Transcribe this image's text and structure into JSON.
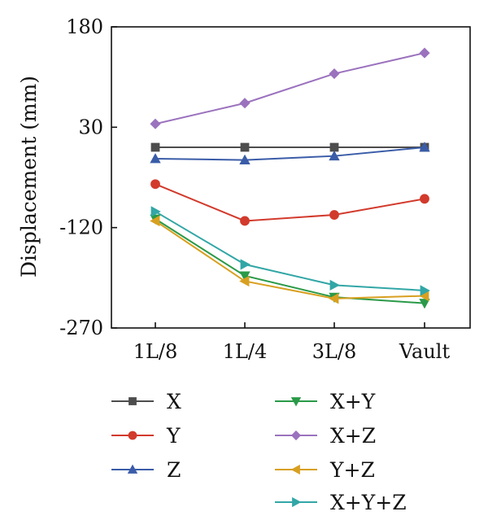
{
  "chart_data": {
    "type": "line",
    "title": "",
    "xlabel": "",
    "ylabel": "Displacement (mm)",
    "categories": [
      "1L/8",
      "1L/4",
      "3L/8",
      "Vault"
    ],
    "ylim": [
      -270,
      180
    ],
    "yticks": [
      180,
      30,
      -120,
      -270
    ],
    "ytick_labels": [
      "180",
      "30",
      "-120",
      "-270"
    ],
    "grid": false,
    "legend_position": "bottom",
    "series": [
      {
        "name": "X",
        "color": "#4d4d4d",
        "marker": "square",
        "values": [
          0,
          0,
          0,
          0
        ]
      },
      {
        "name": "Y",
        "color": "#d23a2c",
        "marker": "circle",
        "values": [
          -55,
          -110,
          -101,
          -77
        ]
      },
      {
        "name": "Z",
        "color": "#3a5ca8",
        "marker": "triangle-up",
        "values": [
          -17,
          -19,
          -13,
          0
        ]
      },
      {
        "name": "X+Y",
        "color": "#2a9a48",
        "marker": "triangle-down",
        "values": [
          -107,
          -192,
          -224,
          -233
        ]
      },
      {
        "name": "X+Z",
        "color": "#9b72be",
        "marker": "diamond",
        "values": [
          35,
          66,
          110,
          141
        ]
      },
      {
        "name": "Y+Z",
        "color": "#d8a020",
        "marker": "triangle-left",
        "values": [
          -110,
          -200,
          -226,
          -222
        ]
      },
      {
        "name": "X+Y+Z",
        "color": "#32a6a6",
        "marker": "triangle-right",
        "values": [
          -96,
          -175,
          -206,
          -214
        ]
      }
    ]
  }
}
